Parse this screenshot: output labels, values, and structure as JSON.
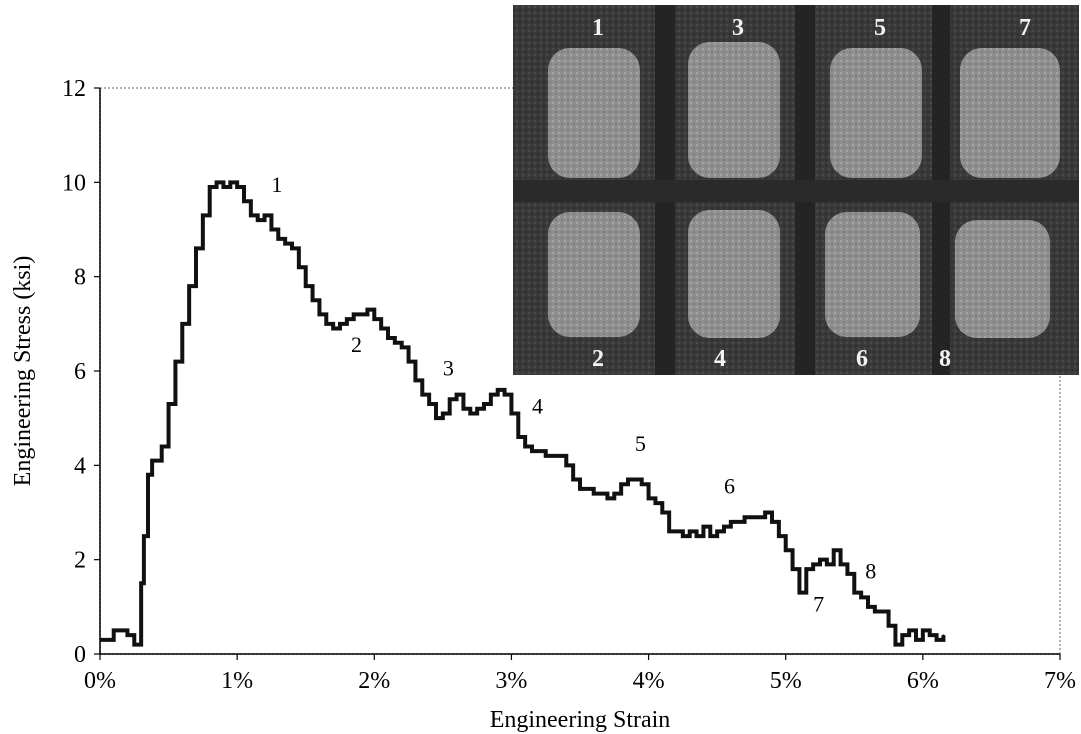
{
  "chart_data": {
    "type": "line",
    "xlabel": "Engineering Strain",
    "ylabel": "Engineering Stress (ksi)",
    "xlim": [
      0,
      0.07
    ],
    "ylim": [
      0,
      12
    ],
    "x_ticks": [
      "0%",
      "1%",
      "2%",
      "3%",
      "4%",
      "5%",
      "6%",
      "7%"
    ],
    "y_ticks": [
      "0",
      "2",
      "4",
      "6",
      "8",
      "10",
      "12"
    ],
    "grid": false,
    "series": [
      {
        "x": [
          0.0,
          0.001,
          0.002,
          0.0025,
          0.003,
          0.0032,
          0.0035,
          0.0038,
          0.004,
          0.0045,
          0.005,
          0.0055,
          0.006,
          0.0065,
          0.007,
          0.0075,
          0.008,
          0.0085,
          0.009,
          0.0095,
          0.01,
          0.0105,
          0.011,
          0.0115,
          0.012,
          0.0125,
          0.013,
          0.0135,
          0.014,
          0.0145,
          0.015,
          0.0155,
          0.016,
          0.0165,
          0.017,
          0.0175,
          0.018,
          0.0185,
          0.019,
          0.0195,
          0.02,
          0.0205,
          0.021,
          0.0215,
          0.022,
          0.0225,
          0.023,
          0.0235,
          0.024,
          0.0245,
          0.025,
          0.0255,
          0.026,
          0.0265,
          0.027,
          0.0275,
          0.028,
          0.0285,
          0.029,
          0.0295,
          0.03,
          0.0305,
          0.031,
          0.0315,
          0.032,
          0.0325,
          0.033,
          0.0335,
          0.034,
          0.0345,
          0.035,
          0.0355,
          0.036,
          0.0365,
          0.037,
          0.0375,
          0.038,
          0.0385,
          0.039,
          0.0395,
          0.04,
          0.0405,
          0.041,
          0.0415,
          0.042,
          0.0425,
          0.043,
          0.0435,
          0.044,
          0.0445,
          0.045,
          0.0455,
          0.046,
          0.0465,
          0.047,
          0.0475,
          0.048,
          0.0485,
          0.049,
          0.0495,
          0.05,
          0.0505,
          0.051,
          0.0515,
          0.052,
          0.0525,
          0.053,
          0.0535,
          0.054,
          0.0545,
          0.055,
          0.0555,
          0.056,
          0.0565,
          0.057,
          0.0575,
          0.058,
          0.0585,
          0.059,
          0.0595,
          0.06,
          0.0605,
          0.061,
          0.0615
        ],
        "values": [
          0.3,
          0.5,
          0.4,
          0.2,
          1.5,
          2.5,
          3.8,
          4.1,
          4.1,
          4.4,
          5.3,
          6.2,
          7.0,
          7.8,
          8.6,
          9.3,
          9.9,
          10.0,
          9.9,
          10.0,
          9.9,
          9.6,
          9.3,
          9.2,
          9.3,
          9.0,
          8.8,
          8.7,
          8.6,
          8.2,
          7.8,
          7.5,
          7.2,
          7.0,
          6.9,
          7.0,
          7.1,
          7.2,
          7.2,
          7.3,
          7.1,
          6.9,
          6.7,
          6.6,
          6.5,
          6.2,
          5.8,
          5.5,
          5.3,
          5.0,
          5.1,
          5.4,
          5.5,
          5.2,
          5.1,
          5.2,
          5.3,
          5.5,
          5.6,
          5.5,
          5.1,
          4.6,
          4.4,
          4.3,
          4.3,
          4.2,
          4.2,
          4.2,
          4.0,
          3.7,
          3.5,
          3.5,
          3.4,
          3.4,
          3.3,
          3.4,
          3.6,
          3.7,
          3.7,
          3.6,
          3.3,
          3.2,
          3.0,
          2.6,
          2.6,
          2.5,
          2.6,
          2.5,
          2.7,
          2.5,
          2.6,
          2.7,
          2.8,
          2.8,
          2.9,
          2.9,
          2.9,
          3.0,
          2.8,
          2.5,
          2.2,
          1.8,
          1.3,
          1.8,
          1.9,
          2.0,
          1.9,
          2.2,
          1.9,
          1.7,
          1.3,
          1.2,
          1.0,
          0.9,
          0.9,
          0.6,
          0.2,
          0.4,
          0.5,
          0.3,
          0.5,
          0.4,
          0.3,
          0.4
        ],
        "color": "#111111"
      }
    ],
    "annotations": [
      {
        "label": "1",
        "x": 0.0125,
        "y": 9.8
      },
      {
        "label": "2",
        "x": 0.0183,
        "y": 6.4
      },
      {
        "label": "3",
        "x": 0.025,
        "y": 5.9
      },
      {
        "label": "4",
        "x": 0.0315,
        "y": 5.1
      },
      {
        "label": "5",
        "x": 0.039,
        "y": 4.3
      },
      {
        "label": "6",
        "x": 0.0455,
        "y": 3.4
      },
      {
        "label": "7",
        "x": 0.052,
        "y": 0.9
      },
      {
        "label": "8",
        "x": 0.0558,
        "y": 1.6
      }
    ],
    "inset": {
      "top_labels": [
        "1",
        "3",
        "5",
        "7"
      ],
      "bottom_labels": [
        "2",
        "4",
        "6",
        "8"
      ]
    }
  }
}
